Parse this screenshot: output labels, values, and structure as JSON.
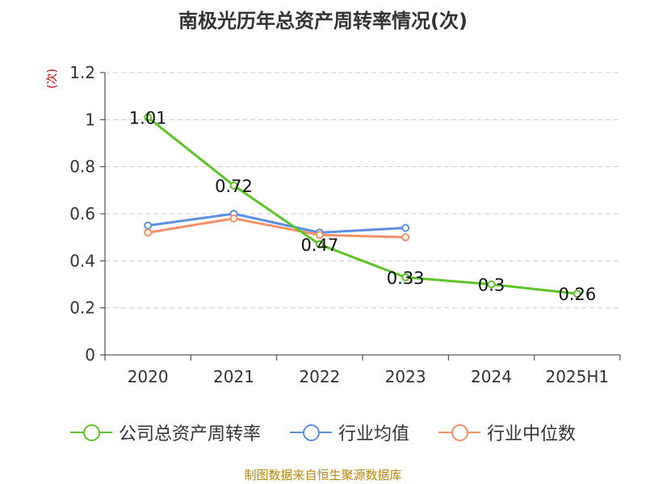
{
  "title": "南极光历年总资产周转率情况(次)",
  "source": "制图数据来自恒生聚源数据库",
  "chart_data": {
    "type": "line",
    "categories": [
      "2020",
      "2021",
      "2022",
      "2023",
      "2024",
      "2025H1"
    ],
    "ylabel": "(次)",
    "ylim": [
      0,
      1.2
    ],
    "yticks": [
      0,
      0.2,
      0.4,
      0.6,
      0.8,
      1,
      1.2
    ],
    "grid": true,
    "legend_position": "bottom",
    "series": [
      {
        "name": "公司总资产周转率",
        "color": "#5cc426",
        "values": [
          1.01,
          0.72,
          0.47,
          0.33,
          0.3,
          0.26
        ],
        "labels": [
          "1.01",
          "0.72",
          "0.47",
          "0.33",
          "0.3",
          "0.26"
        ]
      },
      {
        "name": "行业均值",
        "color": "#5b8fe0",
        "values": [
          0.55,
          0.6,
          0.52,
          0.54,
          null,
          null
        ]
      },
      {
        "name": "行业中位数",
        "color": "#f59067",
        "values": [
          0.52,
          0.58,
          0.51,
          0.5,
          null,
          null
        ]
      }
    ]
  }
}
